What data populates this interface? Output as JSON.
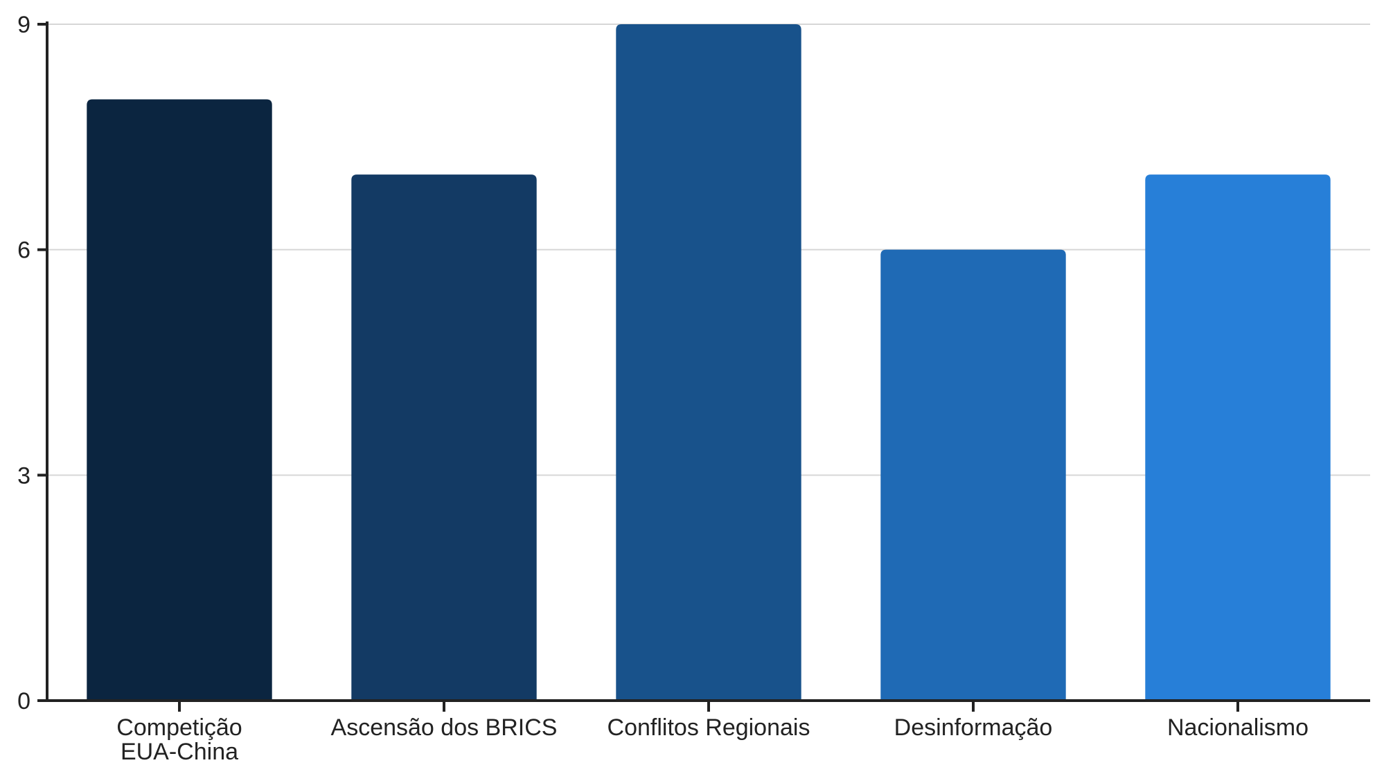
{
  "chart_data": {
    "type": "bar",
    "title": "",
    "xlabel": "",
    "ylabel": "",
    "categories": [
      [
        "Competição",
        "EUA-China"
      ],
      [
        "Ascensão dos BRICS"
      ],
      [
        "Conflitos Regionais"
      ],
      [
        "Desinformação"
      ],
      [
        "Nacionalismo"
      ]
    ],
    "values": [
      8,
      7,
      9,
      6,
      7
    ],
    "colors": [
      "#0b2540",
      "#133a64",
      "#18528b",
      "#1f6ab5",
      "#277fd8"
    ],
    "ylim": [
      0,
      9
    ],
    "yticks": [
      0,
      3,
      6,
      9
    ],
    "grid": true,
    "legend": "none"
  }
}
